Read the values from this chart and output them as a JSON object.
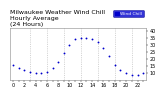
{
  "title_line1": "Milwaukee Weather Wind Chill",
  "title_line2": "Hourly Average",
  "title_line3": "(24 Hours)",
  "hours": [
    0,
    1,
    2,
    3,
    4,
    5,
    6,
    7,
    8,
    9,
    10,
    11,
    12,
    13,
    14,
    15,
    16,
    17,
    18,
    19,
    20,
    21,
    22,
    23
  ],
  "wind_chill": [
    16,
    14,
    12,
    11,
    10,
    10,
    11,
    14,
    18,
    24,
    30,
    34,
    35,
    35,
    34,
    32,
    28,
    22,
    16,
    12,
    10,
    9,
    9,
    10
  ],
  "dot_color": "#0000cc",
  "bg_color": "#ffffff",
  "plot_bg": "#ffffff",
  "legend_bg": "#0000cc",
  "legend_text_color": "#ffffff",
  "grid_color": "#aaaaaa",
  "ylim": [
    5,
    42
  ],
  "xlim": [
    -0.5,
    23.5
  ],
  "yticks": [
    10,
    15,
    20,
    25,
    30,
    35,
    40
  ],
  "ytick_labels": [
    "10",
    "15",
    "20",
    "25",
    "30",
    "35",
    "40"
  ],
  "grid_hours": [
    3,
    6,
    9,
    12,
    15,
    18,
    21
  ],
  "title_fontsize": 4.5,
  "tick_fontsize": 3.5,
  "marker_size": 1.8,
  "legend_label": "Wind Chill"
}
